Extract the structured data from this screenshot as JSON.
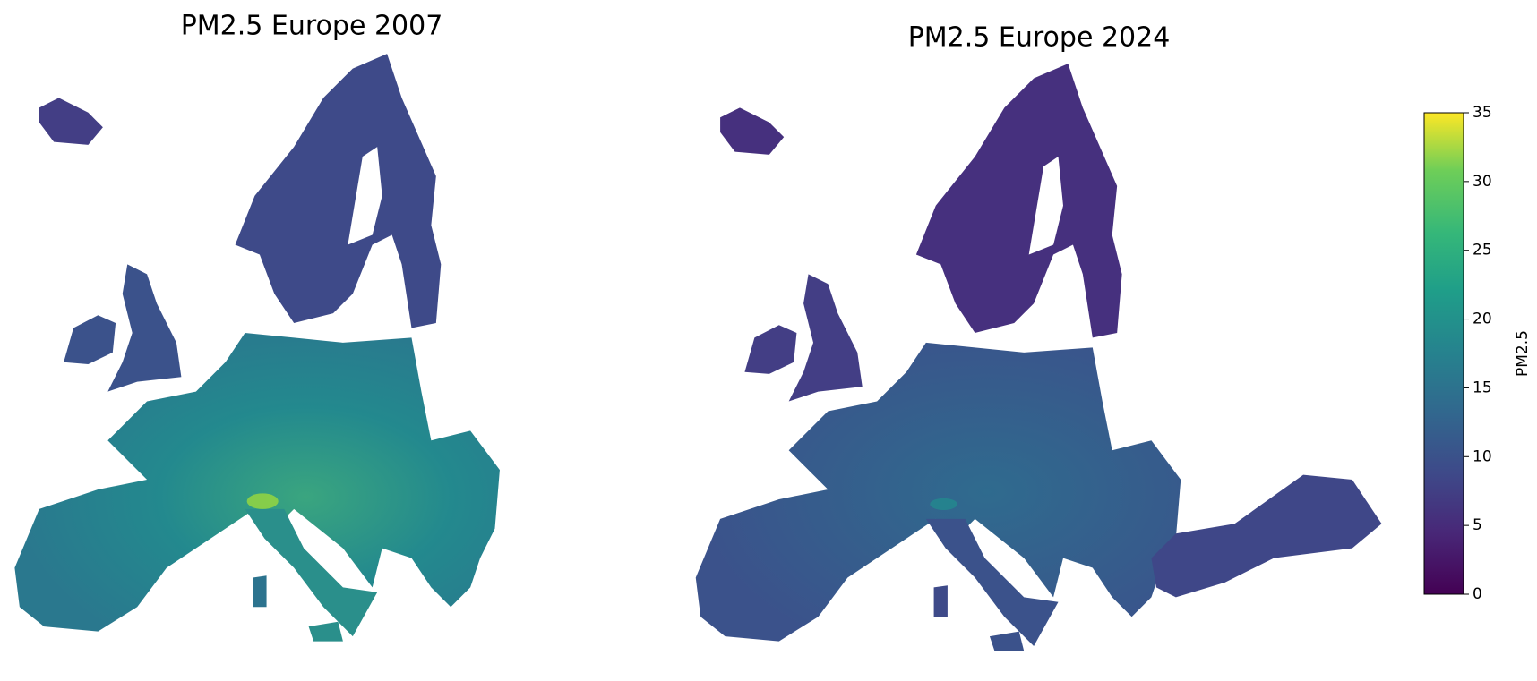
{
  "maps": [
    {
      "title": "PM2.5 Europe 2007"
    },
    {
      "title": "PM2.5 Europe 2024"
    }
  ],
  "colorbar": {
    "label": "PM2.5",
    "lim": [
      0,
      35
    ],
    "ticks": [
      0,
      5,
      10,
      15,
      20,
      25,
      30,
      35
    ]
  }
}
